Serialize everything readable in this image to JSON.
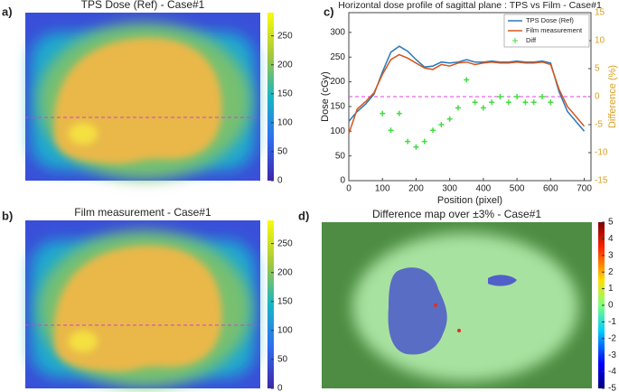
{
  "chart_data": [
    {
      "type": "image",
      "panel": "a)",
      "title": "TPS Dose (Ref) - Case#1",
      "colormap": "parula",
      "clim": [
        0,
        290
      ],
      "cticks": [
        0,
        50,
        100,
        150,
        200,
        250
      ]
    },
    {
      "type": "image",
      "panel": "b)",
      "title": "Film measurement - Case#1",
      "colormap": "parula",
      "clim": [
        0,
        290
      ],
      "cticks": [
        0,
        50,
        100,
        150,
        200,
        250
      ]
    },
    {
      "type": "line",
      "panel": "c)",
      "title": "Horizontal dose profile of sagittal plane : TPS vs Film - Case#1",
      "xlabel": "Position (pixel)",
      "ylabel": "Dose (cGy)",
      "y2label": "Difference (%)",
      "x": [
        0,
        25,
        50,
        75,
        100,
        125,
        150,
        175,
        200,
        225,
        250,
        275,
        300,
        325,
        350,
        375,
        400,
        425,
        450,
        475,
        500,
        525,
        550,
        575,
        600,
        625,
        650,
        675,
        700
      ],
      "xlim": [
        0,
        720
      ],
      "xticks": [
        0,
        100,
        200,
        300,
        400,
        500,
        600,
        700
      ],
      "ylim": [
        0,
        340
      ],
      "yticks": [
        0,
        50,
        100,
        150,
        200,
        250,
        300
      ],
      "y2lim": [
        -15,
        15
      ],
      "y2ticks": [
        -15,
        -10,
        -5,
        0,
        5,
        10,
        15
      ],
      "series": [
        {
          "name": "TPS Dose (Ref)",
          "color": "#2a78b8",
          "values": [
            120,
            140,
            155,
            175,
            220,
            260,
            272,
            262,
            245,
            230,
            232,
            240,
            238,
            240,
            245,
            240,
            240,
            242,
            240,
            240,
            242,
            240,
            240,
            242,
            238,
            180,
            140,
            120,
            100
          ]
        },
        {
          "name": "Film measurement",
          "color": "#d9541a",
          "values": [
            95,
            145,
            160,
            178,
            215,
            245,
            255,
            248,
            238,
            228,
            225,
            235,
            232,
            238,
            240,
            235,
            238,
            240,
            238,
            238,
            240,
            238,
            238,
            240,
            235,
            185,
            150,
            130,
            110
          ]
        },
        {
          "name": "Diff",
          "color": "#44dd44",
          "axis": "y2",
          "marker": "+",
          "values": [
            null,
            null,
            null,
            null,
            -3,
            -6,
            -3,
            -8,
            -9,
            -8,
            -6,
            -5,
            -4,
            -2,
            3,
            -1,
            -2,
            -1,
            0,
            -1,
            0,
            -1,
            -1,
            0,
            -1,
            null,
            null,
            null,
            null
          ]
        }
      ],
      "reference_line": {
        "value": 0,
        "axis": "y2",
        "color": "#e040e0"
      },
      "legend": "upper right"
    },
    {
      "type": "image",
      "panel": "d)",
      "title": "Difference map over ±3% - Case#1",
      "colormap": "jet",
      "clim": [
        -5,
        5
      ],
      "cticks": [
        -5,
        -4,
        -3,
        -2,
        -1,
        0,
        1,
        2,
        3,
        4,
        5
      ]
    }
  ]
}
